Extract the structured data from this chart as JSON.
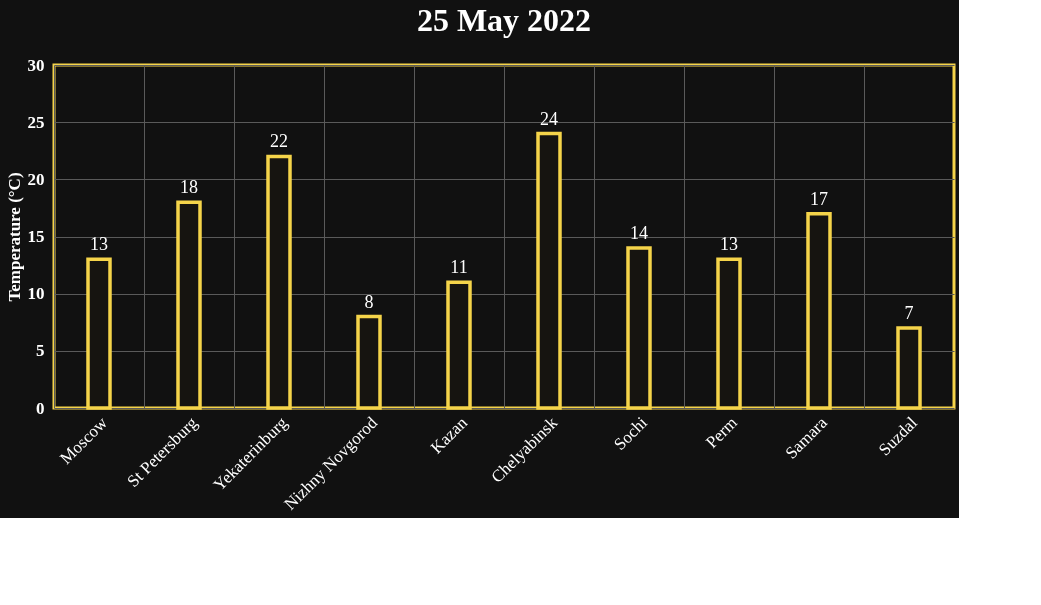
{
  "chart_data": {
    "type": "bar",
    "title": "25 May 2022",
    "ylabel": "Temperature (°C)",
    "categories": [
      "Moscow",
      "St Petersburg",
      "Yekaterinburg",
      "Nizhny Novgorod",
      "Kazan",
      "Chelyabinsk",
      "Sochi",
      "Perm",
      "Samara",
      "Suzdal"
    ],
    "values": [
      13,
      18,
      22,
      8,
      11,
      24,
      14,
      13,
      17,
      7
    ],
    "color": "#f5d44a",
    "ylim": [
      0,
      30
    ],
    "yticks": [
      0,
      5,
      10,
      15,
      20,
      25,
      30
    ],
    "grid": true,
    "data_labels": true
  }
}
